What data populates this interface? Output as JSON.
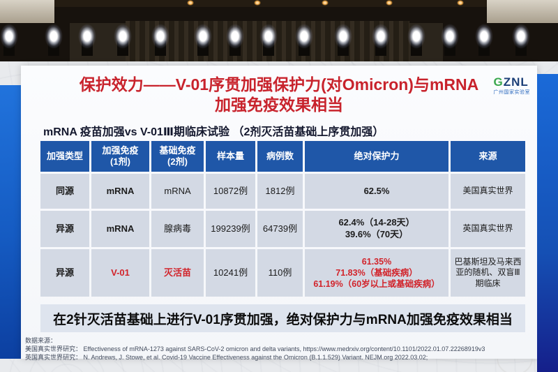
{
  "slide": {
    "title_line1": "保护效力——V-01序贯加强保护力(对Omicron)与mRNA",
    "title_line2": "加强免疫效果相当",
    "logo": {
      "part1": "G",
      "part2": "ZNL",
      "caption": "广州国家实验室"
    },
    "subtitle": "mRNA 疫苗加强vs V-01Ⅲ期临床试验 （2剂灭活苗基础上序贯加强）",
    "table": {
      "headers": [
        "加强类型",
        "加强免疫\n(1剂)",
        "基础免疫\n(2剂)",
        "样本量",
        "病例数",
        "绝对保护力",
        "来源"
      ],
      "rows": [
        {
          "type": "同源",
          "boost": "mRNA",
          "base": "mRNA",
          "samples": "10872例",
          "cases": "1812例",
          "protection": "62.5%",
          "source": "美国真实世界"
        },
        {
          "type": "异源",
          "boost": "mRNA",
          "base": "腺病毒",
          "samples": "199239例",
          "cases": "64739例",
          "protection": "62.4%（14-28天）\n39.6%（70天）",
          "source": "英国真实世界"
        },
        {
          "type": "异源",
          "boost": "V-01",
          "base": "灭活苗",
          "samples": "10241例",
          "cases": "110例",
          "protection": "61.35%\n71.83%（基础疾病）\n61.19%（60岁以上或基础疾病）",
          "source": "巴基斯坦及马来西亚的随机、双盲Ⅲ期临床"
        }
      ]
    },
    "banner": "在2针灭活苗基础上进行V-01序贯加强，绝对保护力与mRNA加强免疫效果相当",
    "footnotes": [
      "数据来源：",
      "美国真实世界研究： Effectiveness of mRNA-1273 against SARS-CoV-2 omicron and delta variants, https://www.medrxiv.org/content/10.1101/2022.01.07.22268919v3",
      "英国真实世界研究： N. Andrews, J. Stowe, et al. Covid-19 Vaccine Effectiveness against the Omicron (B.1.1.529) Variant. NEJM.org 2022.03.02;"
    ]
  },
  "colors": {
    "title_red": "#c8232c",
    "header_blue": "#1f57a8",
    "cell_bg": "#d3d9e4",
    "highlight_red": "#d2232a",
    "banner_bg": "#dee4ee",
    "logo_green": "#3aa84d",
    "logo_navy": "#1c3f77"
  }
}
